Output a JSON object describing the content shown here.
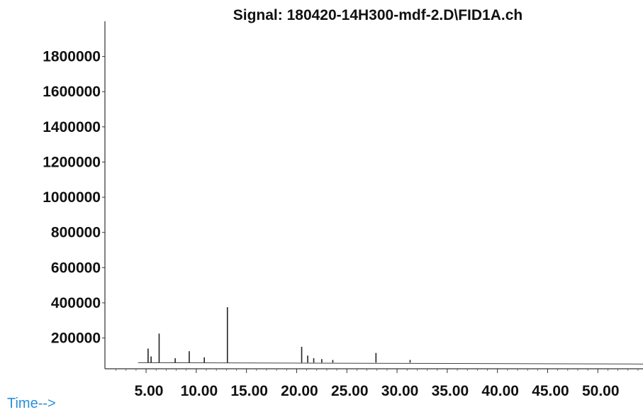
{
  "chart_data": {
    "type": "line",
    "title": "Signal: 180420-14H300-mdf-2.D\\FID1A.ch",
    "xlabel": "Time-->",
    "ylabel": "",
    "xlim": [
      0.9,
      54.5
    ],
    "ylim": [
      25000,
      2000000
    ],
    "grid": false,
    "y_ticks": [
      200000,
      400000,
      600000,
      800000,
      1000000,
      1200000,
      1400000,
      1600000,
      1800000
    ],
    "x_ticks": [
      5,
      10,
      15,
      20,
      25,
      30,
      35,
      40,
      45,
      50
    ],
    "y_tick_labels": [
      "200000",
      "400000",
      "600000",
      "800000",
      "1000000",
      "1200000",
      "1400000",
      "1600000",
      "1800000"
    ],
    "x_tick_labels": [
      "5.00",
      "10.00",
      "15.00",
      "20.00",
      "25.00",
      "30.00",
      "35.00",
      "40.00",
      "45.00",
      "50.00"
    ],
    "baseline": 60000,
    "series": [
      {
        "x": [
          5.2,
          5.5,
          6.3,
          7.9,
          9.3,
          10.8,
          13.1,
          20.5,
          21.1,
          21.7,
          22.5,
          23.6,
          27.9,
          31.3
        ],
        "y": [
          140000,
          95000,
          225000,
          85000,
          125000,
          90000,
          375000,
          150000,
          100000,
          85000,
          80000,
          75000,
          115000,
          75000
        ]
      }
    ]
  }
}
